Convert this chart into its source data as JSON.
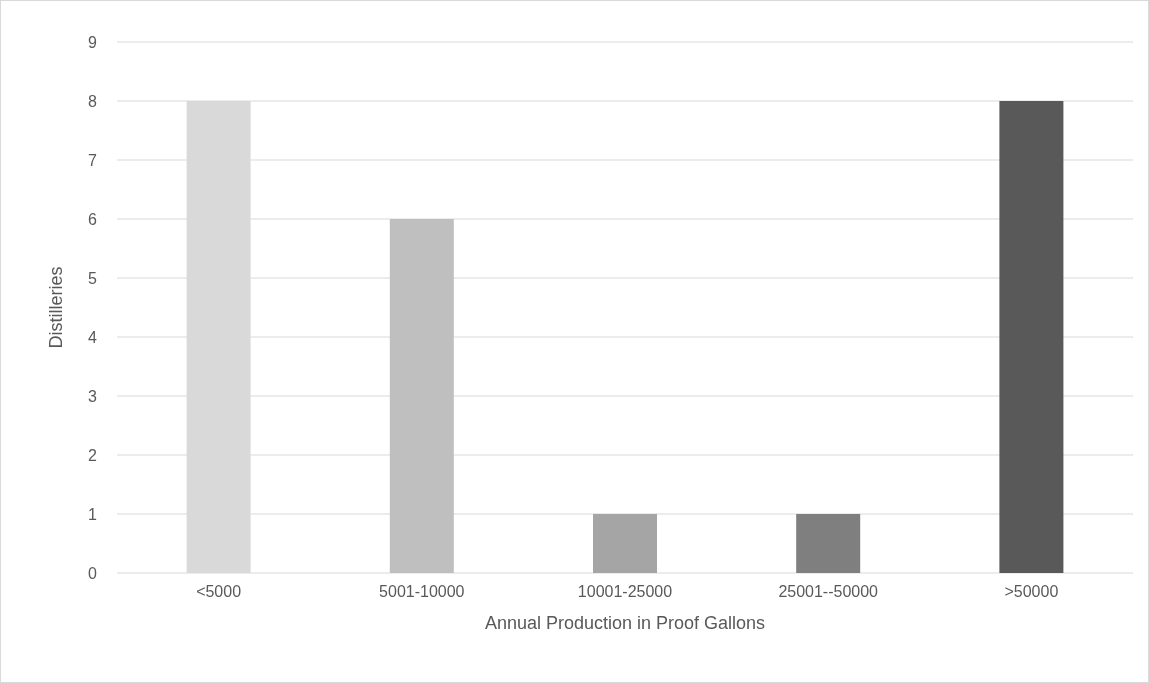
{
  "chart_data": {
    "type": "bar",
    "xlabel": "Annual Production in Proof Gallons",
    "ylabel": "Distilleries",
    "categories": [
      "<5000",
      "5001-10000",
      "10001-25000",
      "25001--50000",
      ">50000"
    ],
    "values": [
      8,
      6,
      1,
      1,
      8
    ],
    "colors": [
      "#d9d9d9",
      "#bfbfbf",
      "#a5a5a5",
      "#7f7f7f",
      "#595959"
    ],
    "ylim": [
      0,
      9
    ],
    "yticks": [
      0,
      1,
      2,
      3,
      4,
      5,
      6,
      7,
      8,
      9
    ],
    "grid": "y"
  }
}
